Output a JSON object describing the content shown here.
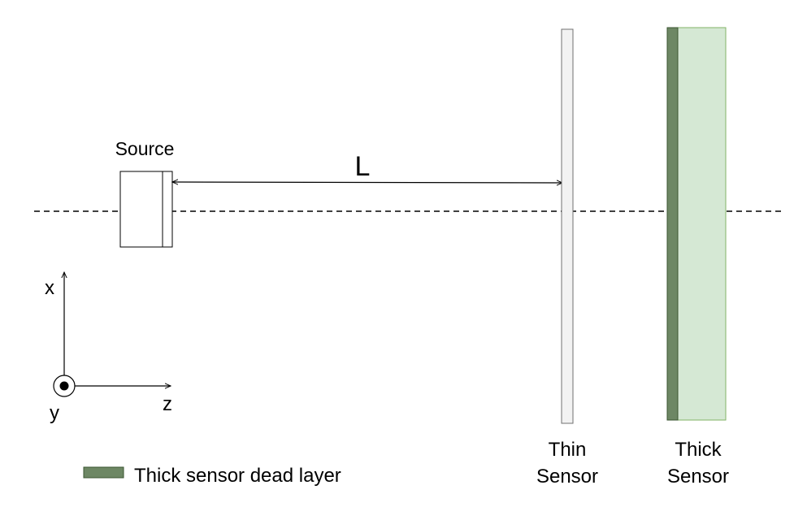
{
  "labels": {
    "source": "Source",
    "distance": "L",
    "axis_x": "x",
    "axis_y": "y",
    "axis_z": "z",
    "thin_sensor_line1": "Thin",
    "thin_sensor_line2": "Sensor",
    "thick_sensor_line1": "Thick",
    "thick_sensor_line2": "Sensor",
    "legend_dead_layer": "Thick sensor dead layer"
  },
  "colors": {
    "thin_sensor_fill": "#f2f2f2",
    "thin_sensor_stroke": "#707070",
    "thick_sensor_fill": "#d5e8d4",
    "thick_sensor_stroke": "#82b366",
    "dead_layer_fill": "#6d8764",
    "dead_layer_stroke": "#3a5431",
    "line": "#000000"
  }
}
